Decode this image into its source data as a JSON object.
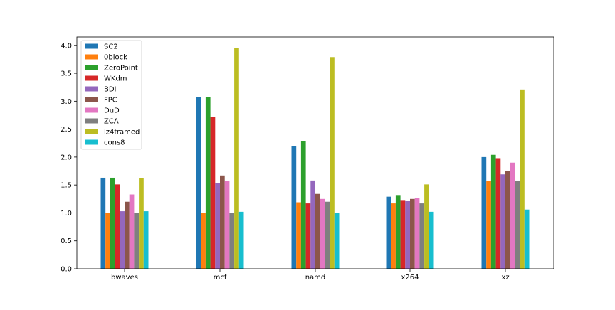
{
  "chart_data": {
    "type": "bar",
    "categories": [
      "bwaves",
      "mcf",
      "namd",
      "x264",
      "xz"
    ],
    "series": [
      {
        "name": "SC2",
        "color": "#1f77b4",
        "values": [
          1.63,
          3.07,
          2.2,
          1.29,
          2.0
        ]
      },
      {
        "name": "0block",
        "color": "#ff7f0e",
        "values": [
          1.0,
          1.0,
          1.19,
          1.17,
          1.57
        ]
      },
      {
        "name": "ZeroPoint",
        "color": "#2ca02c",
        "values": [
          1.63,
          3.07,
          2.28,
          1.32,
          2.04
        ]
      },
      {
        "name": "WKdm",
        "color": "#d62728",
        "values": [
          1.51,
          2.72,
          1.17,
          1.23,
          1.98
        ]
      },
      {
        "name": "BDI",
        "color": "#9467bd",
        "values": [
          1.03,
          1.54,
          1.58,
          1.21,
          1.69
        ]
      },
      {
        "name": "FPC",
        "color": "#8c564b",
        "values": [
          1.2,
          1.67,
          1.34,
          1.25,
          1.75
        ]
      },
      {
        "name": "DuD",
        "color": "#e377c2",
        "values": [
          1.33,
          1.57,
          1.25,
          1.27,
          1.9
        ]
      },
      {
        "name": "ZCA",
        "color": "#7f7f7f",
        "values": [
          1.0,
          1.0,
          1.2,
          1.17,
          1.57
        ]
      },
      {
        "name": "lz4framed",
        "color": "#bcbd22",
        "values": [
          1.62,
          3.95,
          3.79,
          1.51,
          3.21
        ]
      },
      {
        "name": "cons8",
        "color": "#17becf",
        "values": [
          1.03,
          1.02,
          1.0,
          1.02,
          1.06
        ]
      }
    ],
    "title": "",
    "xlabel": "",
    "ylabel": "",
    "ylim": [
      0,
      4.15
    ],
    "yticks": [
      0.0,
      0.5,
      1.0,
      1.5,
      2.0,
      2.5,
      3.0,
      3.5,
      4.0
    ],
    "ytick_labels": [
      "0.0",
      "0.5",
      "1.0",
      "1.5",
      "2.0",
      "2.5",
      "3.0",
      "3.5",
      "4.0"
    ],
    "reference_line": 1.0,
    "grid": false,
    "legend_position": "top-left"
  }
}
